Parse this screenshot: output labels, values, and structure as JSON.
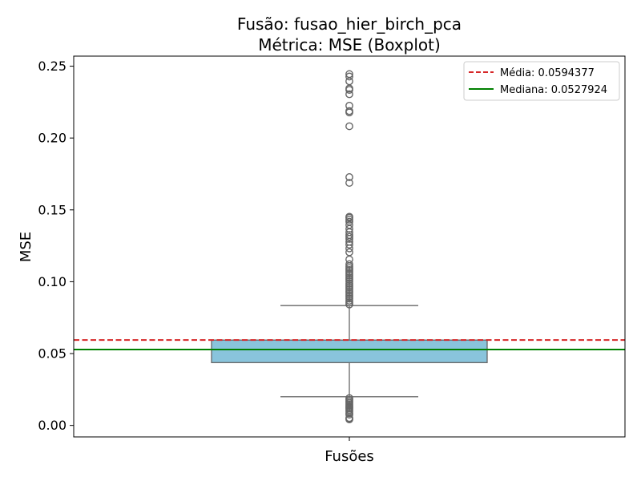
{
  "chart_data": {
    "type": "box",
    "title_line1": "Fusão: fusao_hier_birch_pca",
    "title_line2": "Métrica: MSE (Boxplot)",
    "xlabel": "Fusões",
    "ylabel": "MSE",
    "categories": [
      ""
    ],
    "ylim": [
      -0.008,
      0.257
    ],
    "yticks": [
      0.0,
      0.05,
      0.1,
      0.15,
      0.2,
      0.25
    ],
    "ytick_labels": [
      "0.00",
      "0.05",
      "0.10",
      "0.15",
      "0.20",
      "0.25"
    ],
    "grid": false,
    "legend_position": "top-right",
    "box": {
      "whisker_low": 0.02,
      "q1": 0.0437,
      "median": 0.0528,
      "q3": 0.0594,
      "whisker_high": 0.0834,
      "fill_color": "#89c4dc",
      "line_color": "#666666"
    },
    "outliers": [
      0.0042,
      0.0048,
      0.0052,
      0.0075,
      0.0085,
      0.0098,
      0.0108,
      0.0118,
      0.0128,
      0.0138,
      0.0148,
      0.0158,
      0.0168,
      0.0178,
      0.019,
      0.0842,
      0.0855,
      0.0868,
      0.0882,
      0.0895,
      0.0908,
      0.0922,
      0.0935,
      0.0948,
      0.0962,
      0.0975,
      0.0988,
      0.1002,
      0.1015,
      0.1028,
      0.1042,
      0.1055,
      0.1068,
      0.1082,
      0.1095,
      0.1108,
      0.1122,
      0.1155,
      0.1205,
      0.1232,
      0.1258,
      0.1278,
      0.1298,
      0.1312,
      0.1325,
      0.1345,
      0.1368,
      0.1395,
      0.1418,
      0.1432,
      0.1445,
      0.1452,
      0.1688,
      0.1728,
      0.2082,
      0.2178,
      0.2188,
      0.2225,
      0.2305,
      0.2335,
      0.2345,
      0.2395,
      0.2428,
      0.2445
    ],
    "mean_line": {
      "value": 0.0594377,
      "label": "Média: 0.0594377",
      "color": "#d62728"
    },
    "median_line": {
      "value": 0.0527924,
      "label": "Mediana: 0.0527924",
      "color": "#008000"
    }
  }
}
